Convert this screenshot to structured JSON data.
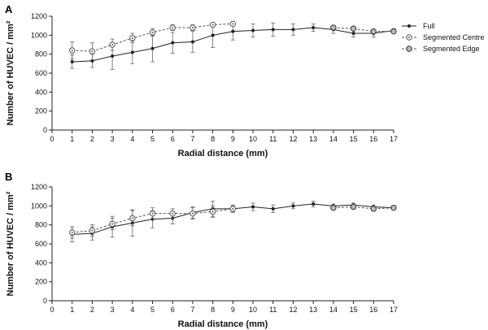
{
  "chart_data": [
    {
      "panel_label": "A",
      "type": "line",
      "xlabel": "Radial distance (mm)",
      "ylabel": "Number of HUVEC / mm²",
      "xlim": [
        0,
        17
      ],
      "ylim": [
        0,
        1200
      ],
      "x_ticks": [
        0,
        1,
        2,
        3,
        4,
        5,
        6,
        7,
        8,
        9,
        10,
        11,
        12,
        13,
        14,
        15,
        16,
        17
      ],
      "y_ticks": [
        0,
        200,
        400,
        600,
        800,
        1000,
        1200
      ],
      "grid": false,
      "legend_position": "right",
      "series": [
        {
          "name": "Full",
          "marker": "filled-small",
          "line": "solid",
          "x": [
            1,
            2,
            3,
            4,
            5,
            6,
            7,
            8,
            9,
            10,
            11,
            12,
            13,
            14,
            15,
            16,
            17
          ],
          "y": [
            720,
            730,
            780,
            820,
            860,
            920,
            930,
            1000,
            1040,
            1050,
            1060,
            1060,
            1080,
            1060,
            1020,
            1020,
            1050
          ],
          "error": [
            70,
            70,
            140,
            120,
            140,
            110,
            110,
            130,
            90,
            70,
            70,
            60,
            40,
            40,
            40,
            40,
            20
          ]
        },
        {
          "name": "Segmented Centre",
          "marker": "open-dot",
          "line": "dashed",
          "x": [
            1,
            2,
            3,
            4,
            5,
            6,
            7,
            8,
            9
          ],
          "y": [
            840,
            830,
            900,
            970,
            1030,
            1080,
            1080,
            1110,
            1120
          ],
          "error": [
            90,
            90,
            60,
            50,
            40,
            30,
            30,
            20,
            20
          ]
        },
        {
          "name": "Segmented Edge",
          "marker": "open-circle",
          "line": "dashed",
          "x": [
            14,
            15,
            16,
            17
          ],
          "y": [
            1080,
            1070,
            1040,
            1040
          ],
          "error": [
            20,
            20,
            20,
            20
          ]
        }
      ]
    },
    {
      "panel_label": "B",
      "type": "line",
      "xlabel": "Radial distance (mm)",
      "ylabel": "Number of HUVEC / mm²",
      "xlim": [
        0,
        17
      ],
      "ylim": [
        0,
        1200
      ],
      "x_ticks": [
        0,
        1,
        2,
        3,
        4,
        5,
        6,
        7,
        8,
        9,
        10,
        11,
        12,
        13,
        14,
        15,
        16,
        17
      ],
      "y_ticks": [
        0,
        200,
        400,
        600,
        800,
        1000,
        1200
      ],
      "grid": false,
      "series": [
        {
          "name": "Full",
          "marker": "filled-small",
          "line": "solid",
          "x": [
            1,
            2,
            3,
            4,
            5,
            6,
            7,
            8,
            9,
            10,
            11,
            12,
            13,
            14,
            15,
            16,
            17
          ],
          "y": [
            700,
            710,
            780,
            820,
            860,
            870,
            930,
            970,
            970,
            990,
            970,
            1000,
            1020,
            1000,
            1010,
            990,
            980
          ],
          "error": [
            80,
            70,
            110,
            140,
            90,
            60,
            60,
            80,
            40,
            40,
            40,
            30,
            30,
            20,
            20,
            20,
            20
          ]
        },
        {
          "name": "Segmented Centre",
          "marker": "open-dot",
          "line": "dashed",
          "x": [
            1,
            2,
            3,
            4,
            5,
            6,
            7,
            8,
            9
          ],
          "y": [
            720,
            740,
            810,
            870,
            920,
            920,
            920,
            940,
            970
          ],
          "error": [
            60,
            60,
            60,
            80,
            60,
            50,
            60,
            60,
            30
          ]
        },
        {
          "name": "Segmented Edge",
          "marker": "open-circle",
          "line": "dashed",
          "x": [
            14,
            15,
            16,
            17
          ],
          "y": [
            980,
            990,
            970,
            980
          ],
          "error": [
            20,
            20,
            20,
            20
          ]
        }
      ]
    }
  ]
}
